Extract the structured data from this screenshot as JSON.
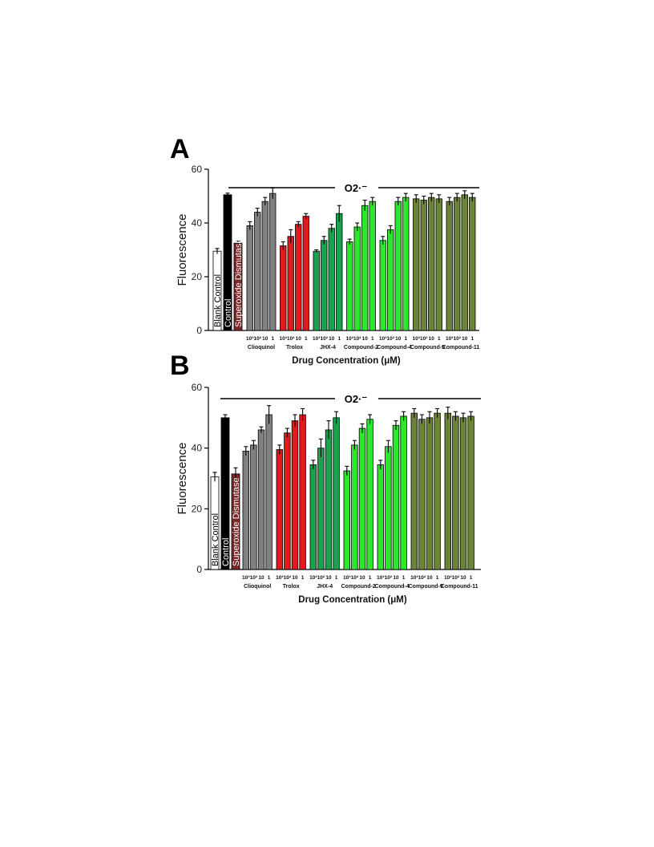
{
  "panels": [
    {
      "letter": "A"
    },
    {
      "letter": "B"
    }
  ],
  "chart_data": [
    {
      "type": "bar",
      "panel": "A",
      "ylabel": "Fluorescence",
      "xlabel": "Drug Concentration (μM)",
      "ylim": [
        0,
        60
      ],
      "yticks": [
        0,
        20,
        40,
        60
      ],
      "annotation": "O2·⁻",
      "controls": [
        {
          "label": "Blank Control",
          "value": 29.5,
          "error": 1.0,
          "color": "#ffffff"
        },
        {
          "label": "Control",
          "value": 50.5,
          "error": 0.6,
          "color": "#000000"
        },
        {
          "label": "Superoxide Dismutase",
          "value": 32.5,
          "error": 0.8,
          "color": "#7b2828"
        }
      ],
      "concentration_labels": [
        "10³",
        "10²",
        "10",
        "1"
      ],
      "groups": [
        {
          "name": "Clioquinol",
          "color": "#808080",
          "values": [
            39,
            44,
            48,
            51
          ],
          "errors": [
            1.5,
            1.5,
            1.5,
            2.0
          ]
        },
        {
          "name": "Trolox",
          "color": "#e31a1c",
          "values": [
            31.5,
            35,
            39.5,
            42.5
          ],
          "errors": [
            1.5,
            2.5,
            1.0,
            1.0
          ]
        },
        {
          "name": "JHX-4",
          "color": "#1aa34f",
          "values": [
            29.5,
            33.5,
            38,
            43.5
          ],
          "errors": [
            0.5,
            1.5,
            1.5,
            3.0
          ]
        },
        {
          "name": "Compound-2",
          "color": "#2ee62e",
          "values": [
            33,
            38.5,
            46.5,
            48
          ],
          "errors": [
            1.0,
            1.5,
            2.0,
            1.5
          ]
        },
        {
          "name": "Compound-4",
          "color": "#2ee62e",
          "values": [
            33.5,
            37.5,
            48,
            49.5
          ],
          "errors": [
            1.5,
            1.5,
            1.5,
            1.5
          ]
        },
        {
          "name": "Compound-9",
          "color": "#6b8436",
          "values": [
            49,
            48.5,
            49.5,
            49
          ],
          "errors": [
            1.5,
            1.5,
            1.5,
            1.5
          ]
        },
        {
          "name": "Compound-11",
          "color": "#6b8436",
          "values": [
            48,
            49.5,
            50.5,
            49.5
          ],
          "errors": [
            1.5,
            1.5,
            1.5,
            1.5
          ]
        }
      ]
    },
    {
      "type": "bar",
      "panel": "B",
      "ylabel": "Fluorescence",
      "xlabel": "Drug Concentration (μM)",
      "ylim": [
        0,
        60
      ],
      "yticks": [
        0,
        20,
        40,
        60
      ],
      "annotation": "O2·⁻",
      "controls": [
        {
          "label": "Blank Control",
          "value": 30.5,
          "error": 1.5,
          "color": "#ffffff"
        },
        {
          "label": "Control",
          "value": 50,
          "error": 1.0,
          "color": "#000000"
        },
        {
          "label": "Superoxide Dismutase",
          "value": 31.5,
          "error": 2.0,
          "color": "#7b2828"
        }
      ],
      "concentration_labels": [
        "10³",
        "10²",
        "10",
        "1"
      ],
      "groups": [
        {
          "name": "Clioquinol",
          "color": "#808080",
          "values": [
            39,
            41,
            46,
            51
          ],
          "errors": [
            1.5,
            1.5,
            1.0,
            3.0
          ]
        },
        {
          "name": "Trolox",
          "color": "#e31a1c",
          "values": [
            39.5,
            45,
            49,
            51
          ],
          "errors": [
            1.5,
            1.5,
            2.0,
            2.0
          ]
        },
        {
          "name": "JHX-4",
          "color": "#1aa34f",
          "values": [
            34.5,
            40,
            46,
            50
          ],
          "errors": [
            1.5,
            3.0,
            3.0,
            2.0
          ]
        },
        {
          "name": "Compound-2",
          "color": "#2ee62e",
          "values": [
            32.5,
            41,
            46.5,
            49.5
          ],
          "errors": [
            1.5,
            1.5,
            1.5,
            1.5
          ]
        },
        {
          "name": "Compound-4",
          "color": "#2ee62e",
          "values": [
            34.5,
            40.5,
            47.5,
            50.5
          ],
          "errors": [
            1.5,
            2.0,
            1.5,
            1.5
          ]
        },
        {
          "name": "Compound-9",
          "color": "#6b8436",
          "values": [
            51.5,
            49.5,
            50,
            51.5
          ],
          "errors": [
            1.5,
            1.5,
            2.0,
            1.5
          ]
        },
        {
          "name": "Compound-11",
          "color": "#6b8436",
          "values": [
            51.5,
            50.5,
            50,
            50.5
          ],
          "errors": [
            2.0,
            1.5,
            1.5,
            1.5
          ]
        }
      ]
    }
  ]
}
